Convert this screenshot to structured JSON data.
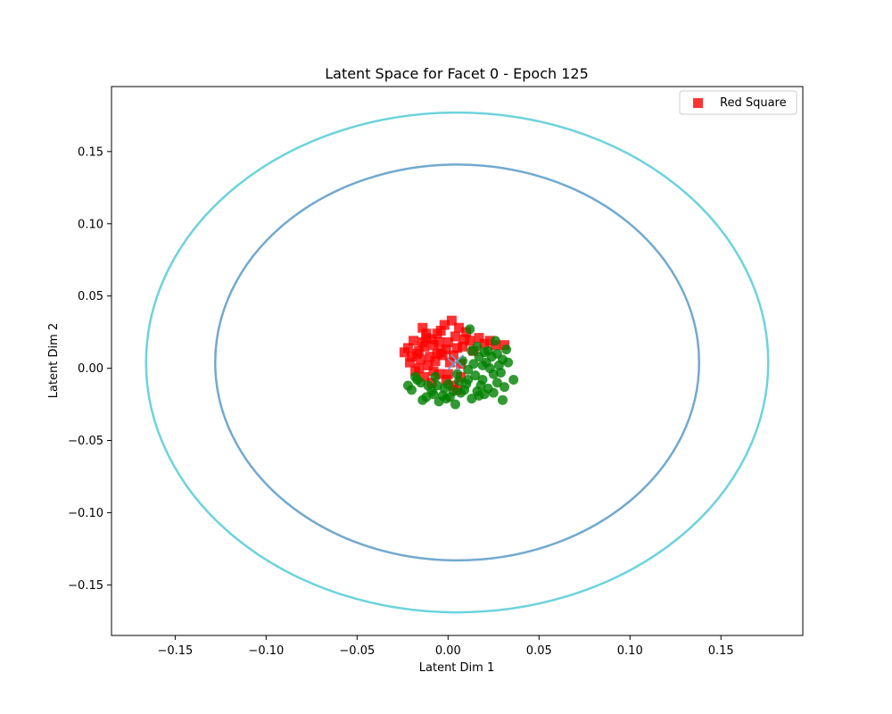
{
  "chart_data": {
    "type": "scatter",
    "title": "Latent Space for Facet 0 - Epoch 125",
    "xlabel": "Latent Dim 1",
    "ylabel": "Latent Dim 2",
    "xlim": [
      -0.185,
      0.195
    ],
    "ylim": [
      -0.185,
      0.195
    ],
    "xticks": [
      -0.15,
      -0.1,
      -0.05,
      0.0,
      0.05,
      0.1,
      0.15
    ],
    "yticks": [
      -0.15,
      -0.1,
      -0.05,
      0.0,
      0.05,
      0.1,
      0.15
    ],
    "grid": false,
    "legend": {
      "placement": "top-right",
      "entries": [
        {
          "label": "Red Square",
          "color": "#ff0000",
          "marker": "square"
        }
      ]
    },
    "series": [
      {
        "marker": "square",
        "color": "#ff0000",
        "points": [
          [
            -0.022,
            0.014
          ],
          [
            -0.019,
            0.019
          ],
          [
            -0.016,
            0.012
          ],
          [
            -0.014,
            0.028
          ],
          [
            -0.012,
            0.021
          ],
          [
            -0.01,
            0.008
          ],
          [
            -0.008,
            0.016
          ],
          [
            -0.006,
            0.024
          ],
          [
            -0.004,
            0.011
          ],
          [
            -0.002,
            0.03
          ],
          [
            0.0,
            0.018
          ],
          [
            0.002,
            0.033
          ],
          [
            0.004,
            0.022
          ],
          [
            0.006,
            0.028
          ],
          [
            0.008,
            0.015
          ],
          [
            0.01,
            0.025
          ],
          [
            0.012,
            0.019
          ],
          [
            0.014,
            0.012
          ],
          [
            0.017,
            0.021
          ],
          [
            0.02,
            0.017
          ],
          [
            0.023,
            0.019
          ],
          [
            0.026,
            0.016
          ],
          [
            0.031,
            0.016
          ],
          [
            -0.021,
            0.004
          ],
          [
            -0.018,
            -0.002
          ],
          [
            -0.015,
            0.006
          ],
          [
            -0.013,
            -0.006
          ],
          [
            -0.011,
            0.002
          ],
          [
            -0.009,
            -0.01
          ],
          [
            -0.007,
            0.005
          ],
          [
            -0.005,
            -0.004
          ],
          [
            -0.003,
            0.009
          ],
          [
            -0.001,
            -0.008
          ],
          [
            0.001,
            0.004
          ],
          [
            0.003,
            -0.012
          ],
          [
            0.005,
            -0.015
          ],
          [
            0.007,
            -0.006
          ],
          [
            -0.017,
            0.01
          ],
          [
            -0.013,
            0.015
          ],
          [
            -0.009,
            0.02
          ],
          [
            -0.005,
            0.018
          ],
          [
            -0.001,
            0.013
          ],
          [
            0.003,
            0.009
          ],
          [
            0.007,
            0.003
          ],
          [
            -0.02,
            0.008
          ],
          [
            -0.012,
            0.024
          ],
          [
            -0.004,
            0.026
          ],
          [
            0.009,
            0.02
          ],
          [
            -0.024,
            0.011
          ],
          [
            -0.016,
            0.0
          ],
          [
            -0.008,
            -0.002
          ],
          [
            0.0,
            -0.004
          ],
          [
            -0.014,
            0.018
          ],
          [
            -0.006,
            0.01
          ],
          [
            0.005,
            0.014
          ]
        ]
      },
      {
        "marker": "circle",
        "color": "#008000",
        "points": [
          [
            -0.02,
            -0.015
          ],
          [
            -0.017,
            -0.008
          ],
          [
            -0.014,
            -0.022
          ],
          [
            -0.011,
            -0.012
          ],
          [
            -0.008,
            -0.018
          ],
          [
            -0.005,
            -0.023
          ],
          [
            -0.002,
            -0.014
          ],
          [
            0.001,
            -0.02
          ],
          [
            0.004,
            -0.025
          ],
          [
            0.007,
            -0.017
          ],
          [
            0.01,
            -0.011
          ],
          [
            0.013,
            -0.021
          ],
          [
            0.016,
            -0.016
          ],
          [
            0.019,
            -0.008
          ],
          [
            0.022,
            -0.014
          ],
          [
            0.025,
            -0.004
          ],
          [
            0.028,
            0.002
          ],
          [
            0.03,
            0.006
          ],
          [
            0.032,
            0.013
          ],
          [
            0.033,
            0.004
          ],
          [
            0.036,
            -0.008
          ],
          [
            0.03,
            -0.022
          ],
          [
            0.026,
            0.019
          ],
          [
            0.012,
            0.027
          ],
          [
            0.008,
            0.005
          ],
          [
            0.011,
            -0.001
          ],
          [
            0.014,
            0.003
          ],
          [
            0.017,
            0.008
          ],
          [
            0.02,
            0.011
          ],
          [
            0.023,
            0.0
          ],
          [
            0.015,
            -0.005
          ],
          [
            0.018,
            -0.012
          ],
          [
            0.021,
            0.004
          ],
          [
            0.024,
            0.008
          ],
          [
            0.027,
            -0.01
          ],
          [
            0.009,
            -0.015
          ],
          [
            0.006,
            -0.009
          ],
          [
            0.003,
            -0.016
          ],
          [
            0.0,
            -0.011
          ],
          [
            -0.003,
            -0.019
          ],
          [
            -0.006,
            -0.012
          ],
          [
            -0.009,
            -0.016
          ],
          [
            -0.012,
            -0.02
          ],
          [
            -0.015,
            -0.01
          ],
          [
            -0.018,
            -0.006
          ],
          [
            -0.022,
            -0.012
          ],
          [
            0.013,
            0.012
          ],
          [
            0.016,
            0.015
          ],
          [
            0.019,
            0.002
          ],
          [
            0.022,
            0.012
          ],
          [
            0.029,
            -0.003
          ],
          [
            0.031,
            -0.013
          ],
          [
            0.025,
            -0.017
          ],
          [
            0.017,
            -0.019
          ],
          [
            0.011,
            -0.008
          ],
          [
            -0.007,
            -0.006
          ],
          [
            -0.001,
            -0.021
          ],
          [
            0.005,
            -0.004
          ],
          [
            0.02,
            -0.018
          ],
          [
            0.027,
            0.01
          ]
        ]
      },
      {
        "marker": "x",
        "color": "#6a9fcf",
        "points": [
          [
            0.003,
            0.003
          ],
          [
            0.005,
            0.005
          ]
        ]
      }
    ],
    "ellipses": [
      {
        "center": [
          0.005,
          0.004
        ],
        "rx": 0.133,
        "ry": 0.137,
        "color": "#72a9cf"
      },
      {
        "center": [
          0.005,
          0.004
        ],
        "rx": 0.171,
        "ry": 0.173,
        "color": "#6dd3dc"
      }
    ]
  }
}
